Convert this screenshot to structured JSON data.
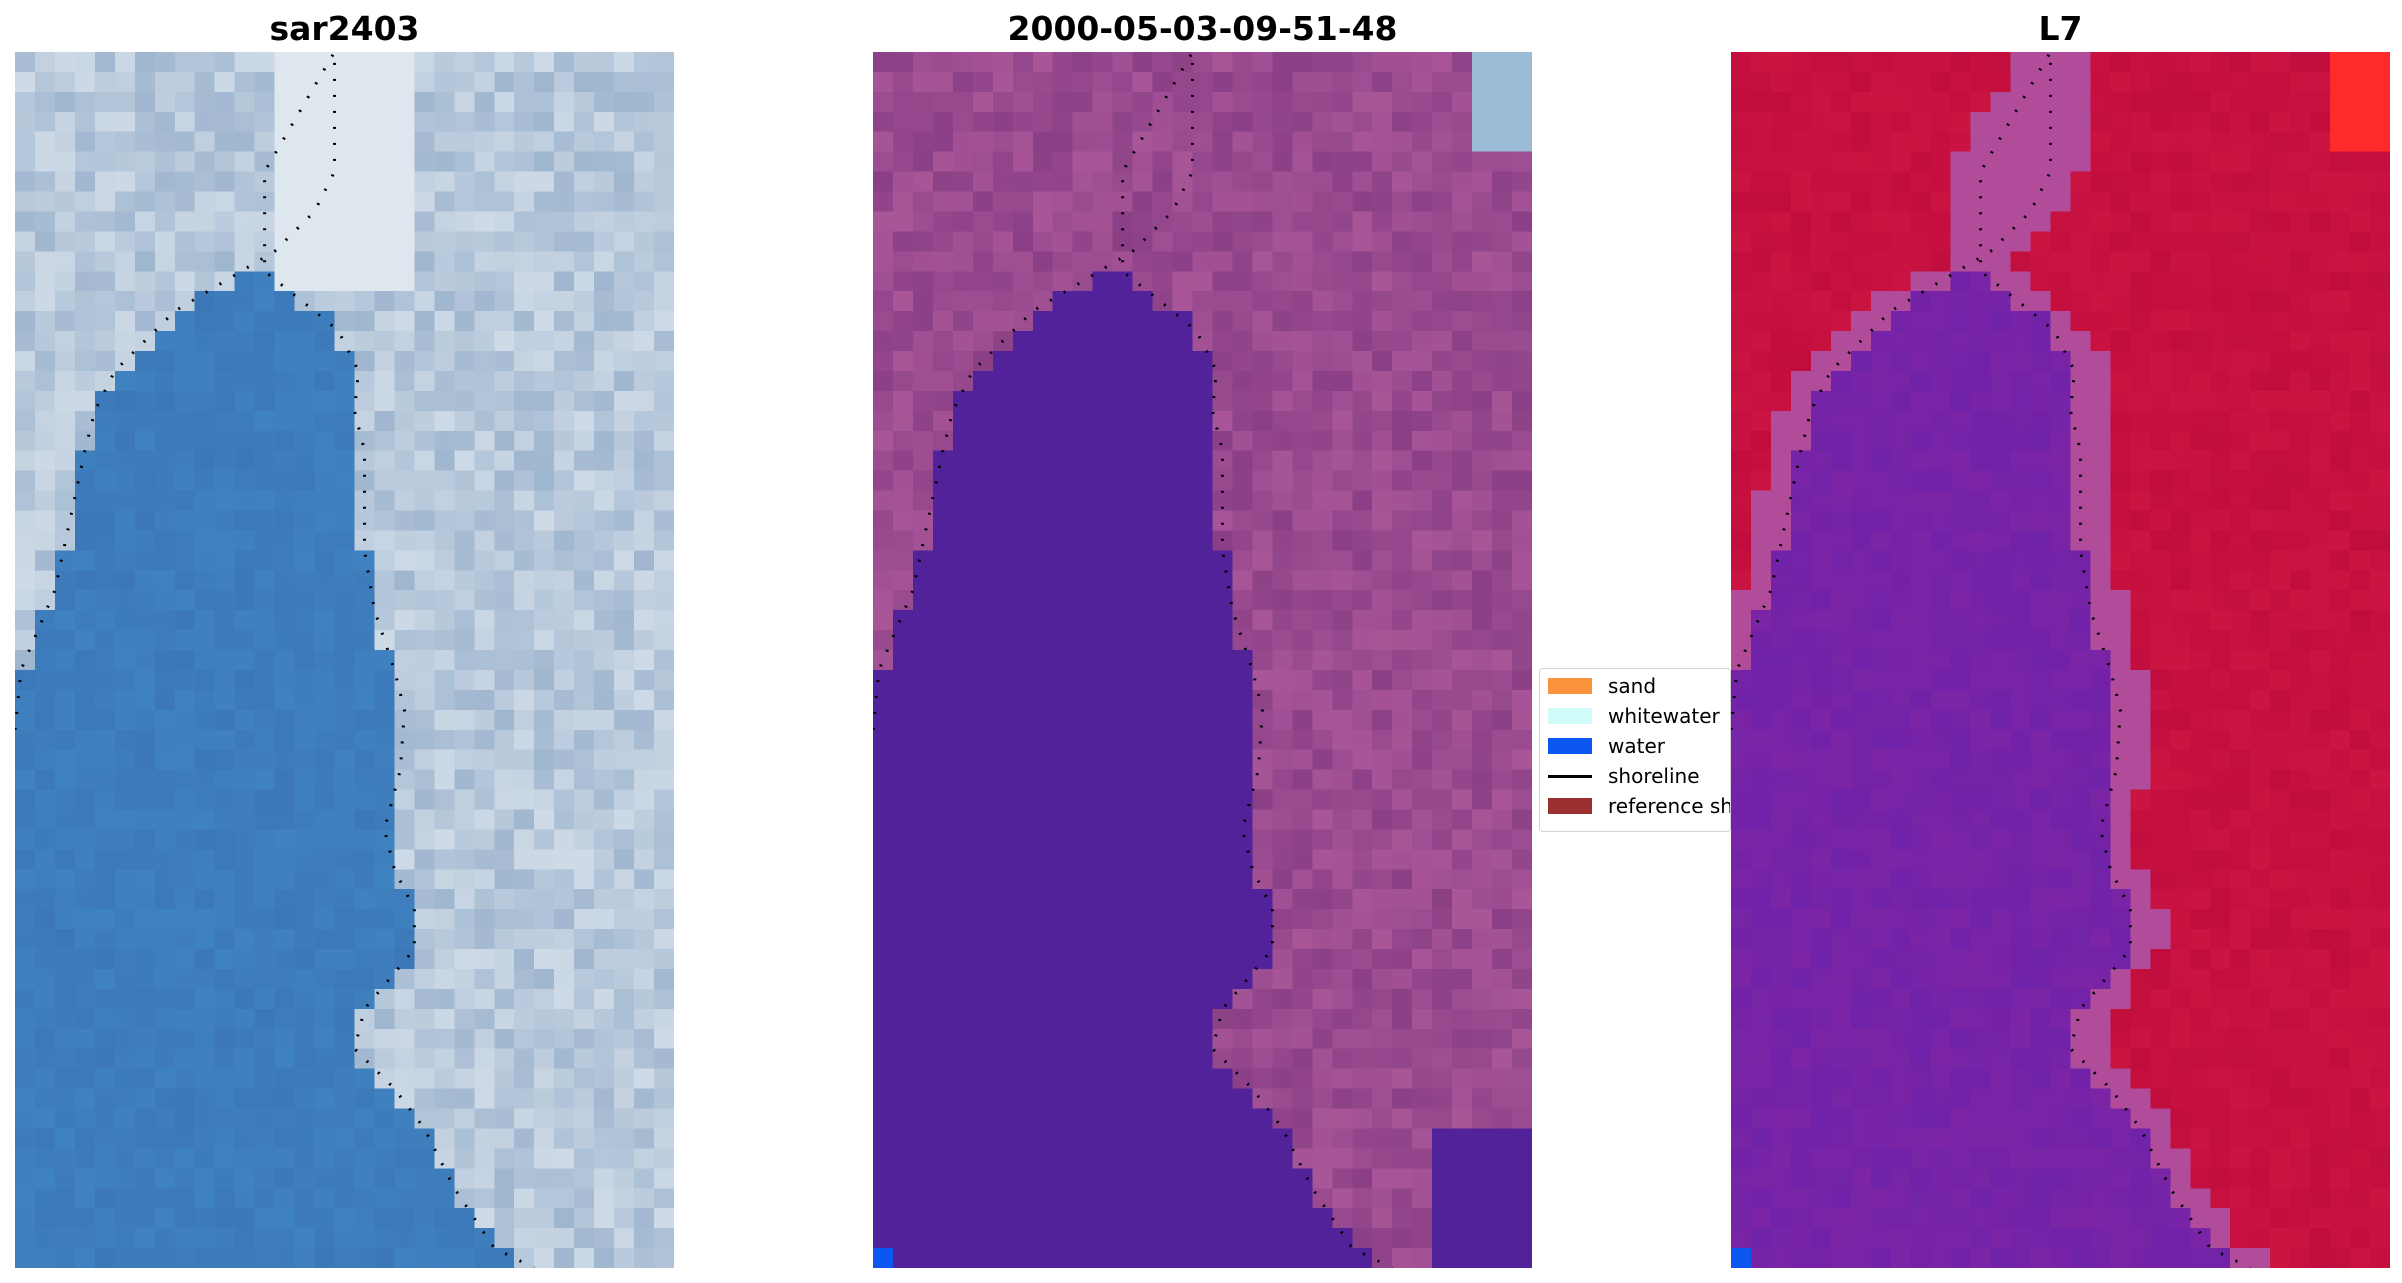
{
  "panels": [
    {
      "title": "sar2403",
      "palette": "rgb"
    },
    {
      "title": "2000-05-03-09-51-48",
      "palette": "classified"
    },
    {
      "title": "L7",
      "palette": "index"
    }
  ],
  "legend": {
    "items": [
      {
        "label": "sand",
        "kind": "patch",
        "color": "#fb923c"
      },
      {
        "label": "whitewater",
        "kind": "patch",
        "color": "#cffcf9"
      },
      {
        "label": "water",
        "kind": "patch",
        "color": "#0b57f0"
      },
      {
        "label": "shoreline",
        "kind": "line",
        "color": "#000000"
      },
      {
        "label": "reference sh",
        "kind": "patch",
        "color": "#9b3030"
      }
    ]
  },
  "colors": {
    "rgb_water": "#3c78b8",
    "rgb_land": "#9fb6cf",
    "rgb_bright": "#eef2f6",
    "class_water": "#51229a",
    "class_land": "#8a3f86",
    "class_land_light": "#b05c9d",
    "class_corner_blue": "#0b57f0",
    "class_corner_sky": "#9bbcd6",
    "index_water": "#7b25a6",
    "index_land": "#c10d3d",
    "index_edge": "#b04c9a",
    "index_hot": "#ff2a2a"
  }
}
